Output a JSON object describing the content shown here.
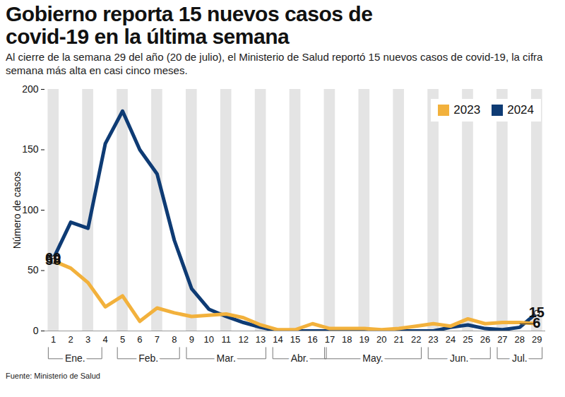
{
  "chart_data": {
    "type": "line",
    "title": "Gobierno reporta 15 nuevos casos de covid-19 en la última semana",
    "subtitle": "Al cierre de la semana 29 del año (20 de julio), el Ministerio de Salud reportó 15 nuevos casos de covid-19, la cifra semana más alta en casi cinco meses.",
    "source": "Fuente: Ministerio de Salud",
    "y_label": "Número de casos",
    "x": [
      1,
      2,
      3,
      4,
      5,
      6,
      7,
      8,
      9,
      10,
      11,
      12,
      13,
      14,
      15,
      16,
      17,
      18,
      19,
      20,
      21,
      22,
      23,
      24,
      25,
      26,
      27,
      28,
      29
    ],
    "series": [
      {
        "name": "2023",
        "color": "#f2b13c",
        "values": [
          58,
          52,
          40,
          20,
          29,
          8,
          19,
          15,
          12,
          13,
          14,
          11,
          5,
          1,
          1,
          6,
          2,
          2,
          2,
          1,
          2,
          4,
          6,
          4,
          10,
          6,
          7,
          7,
          6
        ]
      },
      {
        "name": "2024",
        "color": "#0e3b74",
        "values": [
          60,
          90,
          85,
          155,
          182,
          150,
          130,
          75,
          35,
          18,
          12,
          7,
          3,
          0,
          0,
          0,
          0,
          0,
          0,
          0,
          0,
          0,
          0,
          3,
          5,
          2,
          1,
          3,
          15
        ]
      }
    ],
    "xlim": [
      0.5,
      29.5
    ],
    "xticks": [
      1,
      2,
      3,
      4,
      5,
      6,
      7,
      8,
      9,
      10,
      11,
      12,
      13,
      14,
      15,
      16,
      17,
      18,
      19,
      20,
      21,
      22,
      23,
      24,
      25,
      26,
      27,
      28,
      29
    ],
    "ylim": [
      0,
      200
    ],
    "yticks": [
      0,
      50,
      100,
      150,
      200
    ],
    "grid": false,
    "legend": "top-right",
    "month_groups": [
      {
        "label": "Ene.",
        "from": 1,
        "to": 3.5
      },
      {
        "label": "Feb.",
        "from": 5,
        "to": 8
      },
      {
        "label": "Mar.",
        "from": 9,
        "to": 13
      },
      {
        "label": "Abr.",
        "from": 14,
        "to": 16.5
      },
      {
        "label": "May.",
        "from": 17,
        "to": 22
      },
      {
        "label": "Jun.",
        "from": 23,
        "to": 26
      },
      {
        "label": "Jul.",
        "from": 27,
        "to": 29
      }
    ],
    "annotations": [
      {
        "x": 1,
        "y": 60,
        "label": "60"
      },
      {
        "x": 1,
        "y": 58,
        "label": "58"
      },
      {
        "x": 29,
        "y": 6,
        "label": "6"
      },
      {
        "x": 29,
        "y": 15,
        "label": "15"
      }
    ]
  }
}
